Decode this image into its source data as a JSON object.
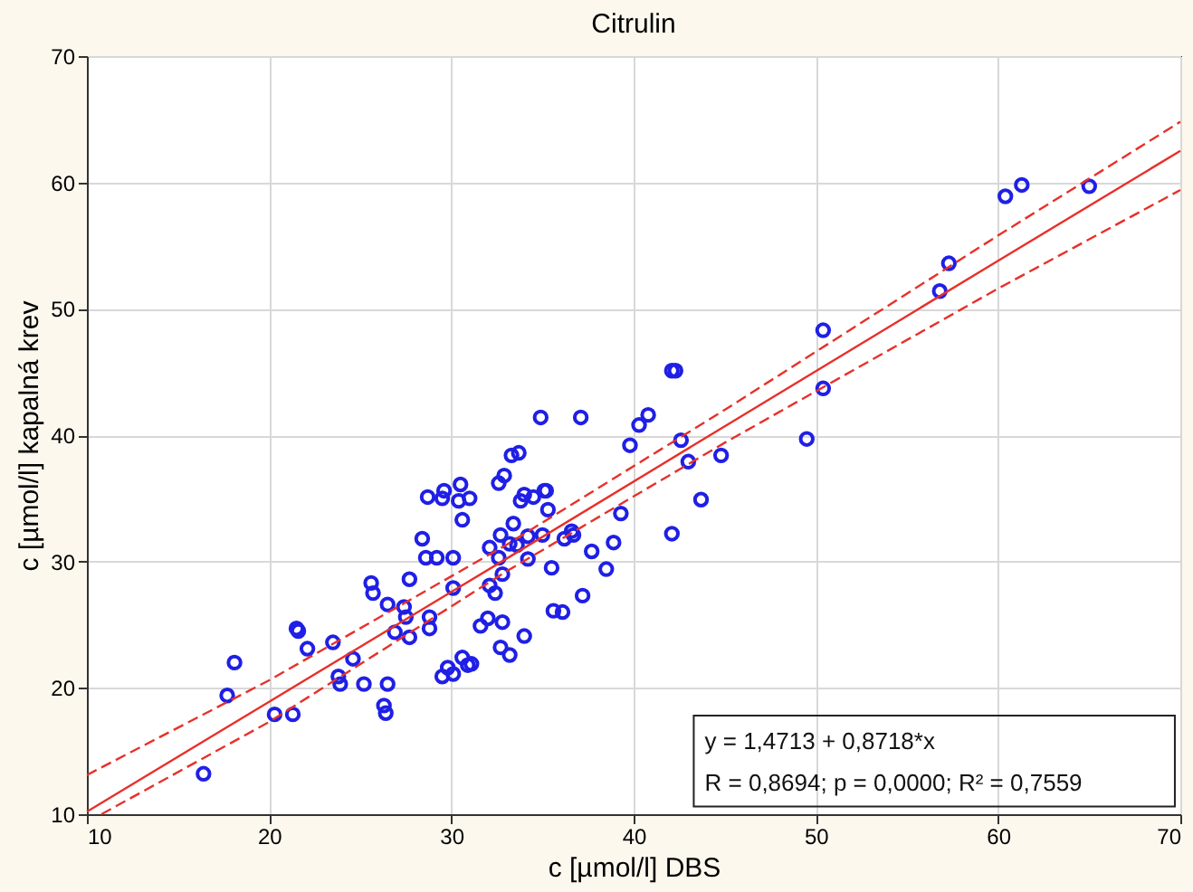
{
  "chart_data": {
    "type": "scatter",
    "title": "Citrulin",
    "xlabel": "c [µmol/l] DBS",
    "ylabel": "c [µmol/l] kapalná krev",
    "xlim": [
      10,
      70
    ],
    "ylim": [
      10,
      70
    ],
    "xticks": [
      10,
      20,
      30,
      40,
      50,
      60,
      70
    ],
    "yticks": [
      10,
      20,
      30,
      40,
      50,
      60,
      70
    ],
    "grid": true,
    "marker": "circle",
    "annotations": [
      "y = 1,4713 + 0,8718*x",
      "R = 0,8694; p = 0,0000; R² = 0,7559"
    ],
    "series": [
      {
        "color": "#1f1fe6",
        "x": [
          16.4,
          17.7,
          18.1,
          20.3,
          21.3,
          21.5,
          21.6,
          22.1,
          23.5,
          23.8,
          23.9,
          24.6,
          25.2,
          25.6,
          25.7,
          26.3,
          26.4,
          26.5,
          26.5,
          26.9,
          27.4,
          27.5,
          27.7,
          27.7,
          28.4,
          28.6,
          28.7,
          28.8,
          28.8,
          29.2,
          29.5,
          29.6,
          29.5,
          29.8,
          30.1,
          30.1,
          30.1,
          30.4,
          30.5,
          30.6,
          30.6,
          31.1,
          31.0,
          30.9,
          31.6,
          32.0,
          32.1,
          32.1,
          32.4,
          32.6,
          32.6,
          32.7,
          32.7,
          32.8,
          32.8,
          32.9,
          33.2,
          33.2,
          33.3,
          33.4,
          33.6,
          33.7,
          33.8,
          34.0,
          34.0,
          34.2,
          34.2,
          34.5,
          34.9,
          35.0,
          35.1,
          35.2,
          35.3,
          35.5,
          35.6,
          36.1,
          36.2,
          36.6,
          36.7,
          37.1,
          37.2,
          37.7,
          38.5,
          38.9,
          39.3,
          39.8,
          40.3,
          40.8,
          42.1,
          42.1,
          42.3,
          42.6,
          43.0,
          43.7,
          44.8,
          49.5,
          50.4,
          50.4,
          56.8,
          57.3,
          60.4,
          61.3,
          65.0
        ],
        "values": [
          13.2,
          19.4,
          22.0,
          17.9,
          17.9,
          24.7,
          24.5,
          23.1,
          23.6,
          20.9,
          20.3,
          22.3,
          20.3,
          28.3,
          27.5,
          18.6,
          18.0,
          20.3,
          26.6,
          24.4,
          26.4,
          25.6,
          28.6,
          24.0,
          31.8,
          30.3,
          35.1,
          25.6,
          24.7,
          30.3,
          35.0,
          35.6,
          20.9,
          21.6,
          21.1,
          27.9,
          30.3,
          34.8,
          36.1,
          33.3,
          22.4,
          21.9,
          35.0,
          21.8,
          24.9,
          25.5,
          28.1,
          31.1,
          27.5,
          30.3,
          36.2,
          23.2,
          32.1,
          29.0,
          25.2,
          36.8,
          22.6,
          31.4,
          38.4,
          33.0,
          31.3,
          38.6,
          34.8,
          35.3,
          24.1,
          30.2,
          32.0,
          35.1,
          41.4,
          32.1,
          35.6,
          35.6,
          34.1,
          29.5,
          26.1,
          26.0,
          31.8,
          32.4,
          32.1,
          41.4,
          27.3,
          30.8,
          29.4,
          31.5,
          33.8,
          39.2,
          40.8,
          41.6,
          32.2,
          45.1,
          45.1,
          39.6,
          37.9,
          34.9,
          38.4,
          39.7,
          48.3,
          43.7,
          51.4,
          53.6,
          58.9,
          59.8,
          59.7
        ]
      },
      {
        "type": "line",
        "marker": "none",
        "color": "#e8302a",
        "line_style": "solid",
        "x": [
          10,
          20,
          33,
          45,
          60,
          70
        ],
        "values": [
          10.2,
          18.9,
          30.2,
          40.7,
          53.8,
          62.5
        ]
      },
      {
        "type": "line",
        "marker": "none",
        "color": "#e8302a",
        "line_style": "dashed",
        "x": [
          10,
          20,
          33,
          45,
          60,
          70
        ],
        "values": [
          13.1,
          20.6,
          31.3,
          42.0,
          55.8,
          64.8
        ]
      },
      {
        "type": "line",
        "marker": "none",
        "color": "#e8302a",
        "line_style": "dashed",
        "x": [
          10.8,
          20,
          33,
          45,
          60,
          70
        ],
        "values": [
          10.0,
          17.3,
          29.2,
          39.4,
          51.6,
          59.4
        ]
      }
    ]
  }
}
